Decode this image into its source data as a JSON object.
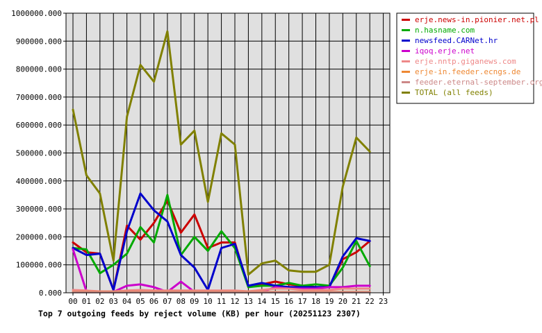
{
  "chart_data": {
    "type": "line",
    "title": "Top 7 outgoing feeds by reject volume (KB) per hour (20251123 2307)",
    "xlabel": "",
    "ylabel": "",
    "ylim": [
      0,
      1000000
    ],
    "yticks": [
      "0.000",
      "100000.000",
      "200000.000",
      "300000.000",
      "400000.000",
      "500000.000",
      "600000.000",
      "700000.000",
      "800000.000",
      "900000.000",
      "1000000.000"
    ],
    "categories": [
      "00",
      "01",
      "02",
      "03",
      "04",
      "05",
      "06",
      "07",
      "08",
      "09",
      "10",
      "11",
      "12",
      "13",
      "14",
      "15",
      "16",
      "17",
      "18",
      "19",
      "20",
      "21",
      "22",
      "23"
    ],
    "grid": true,
    "legend_position": "top-right",
    "plot_background": "#e0e0e0",
    "series": [
      {
        "name": "erje.news-in.pionier.net.pl",
        "color": "#cc0000",
        "values": [
          180000,
          145000,
          140000,
          10000,
          240000,
          190000,
          250000,
          330000,
          215000,
          280000,
          160000,
          180000,
          180000,
          20000,
          30000,
          40000,
          30000,
          25000,
          20000,
          20000,
          120000,
          145000,
          185000,
          null
        ]
      },
      {
        "name": "n.hasname.com",
        "color": "#00aa00",
        "values": [
          160000,
          155000,
          70000,
          100000,
          140000,
          235000,
          180000,
          350000,
          135000,
          200000,
          150000,
          220000,
          160000,
          20000,
          25000,
          25000,
          35000,
          25000,
          30000,
          25000,
          90000,
          185000,
          95000,
          null
        ]
      },
      {
        "name": "newsfeed.CARNet.hr",
        "color": "#0000cc",
        "values": [
          160000,
          135000,
          140000,
          10000,
          220000,
          355000,
          295000,
          255000,
          135000,
          90000,
          10000,
          160000,
          175000,
          25000,
          35000,
          25000,
          20000,
          20000,
          20000,
          20000,
          130000,
          195000,
          185000,
          null
        ]
      },
      {
        "name": "iqoq.erje.net",
        "color": "#cc00cc",
        "values": [
          155000,
          5000,
          3000,
          3000,
          25000,
          30000,
          20000,
          3000,
          40000,
          3000,
          3000,
          3000,
          3000,
          3000,
          3000,
          20000,
          15000,
          15000,
          15000,
          20000,
          20000,
          25000,
          25000,
          null
        ]
      },
      {
        "name": "erje.nntp.giganews.com",
        "color": "#ee8888",
        "values": [
          10000,
          8000,
          5000,
          5000,
          8000,
          10000,
          8000,
          8000,
          8000,
          8000,
          8000,
          8000,
          8000,
          5000,
          10000,
          15000,
          15000,
          10000,
          10000,
          10000,
          15000,
          15000,
          15000,
          null
        ]
      },
      {
        "name": "erje-in.feeder.ecngs.de",
        "color": "#ee8833",
        "values": [
          3000,
          3000,
          3000,
          3000,
          3000,
          3000,
          3000,
          3000,
          3000,
          3000,
          3000,
          3000,
          3000,
          3000,
          3000,
          3000,
          3000,
          3000,
          3000,
          3000,
          3000,
          3000,
          3000,
          null
        ]
      },
      {
        "name": "feeder.eternal-september.org",
        "color": "#cc8888",
        "values": [
          2000,
          2000,
          2000,
          2000,
          2000,
          2000,
          2000,
          2000,
          2000,
          2000,
          2000,
          2000,
          2000,
          2000,
          2000,
          2000,
          2000,
          2000,
          2000,
          2000,
          2000,
          2000,
          2000,
          null
        ]
      },
      {
        "name": "TOTAL (all feeds)",
        "color": "#808000",
        "values": [
          655000,
          420000,
          355000,
          115000,
          630000,
          815000,
          755000,
          935000,
          530000,
          580000,
          325000,
          570000,
          530000,
          65000,
          105000,
          115000,
          80000,
          75000,
          75000,
          100000,
          380000,
          555000,
          505000,
          null
        ]
      }
    ]
  }
}
